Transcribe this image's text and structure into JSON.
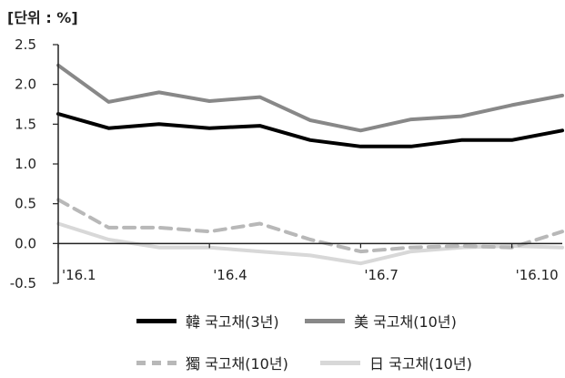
{
  "unit_label": "[단위 : %]",
  "chart_data": {
    "type": "line",
    "ylim": [
      -0.5,
      2.5
    ],
    "yticks": [
      "2.5",
      "2.0",
      "1.5",
      "1.0",
      "0.5",
      "0.0",
      "-0.5"
    ],
    "xtick_labels": [
      "'16.1",
      "'16.4",
      "'16.7",
      "'16.10"
    ],
    "grid": false,
    "legend_position": "bottom",
    "x": [
      "2016-01",
      "2016-02",
      "2016-03",
      "2016-04",
      "2016-05",
      "2016-06",
      "2016-07",
      "2016-08",
      "2016-09",
      "2016-10",
      "2016-11"
    ],
    "series": [
      {
        "name": "韓 국고채(3년)",
        "color": "#000000",
        "dash": "solid",
        "values": [
          1.63,
          1.45,
          1.5,
          1.45,
          1.48,
          1.3,
          1.22,
          1.22,
          1.3,
          1.3,
          1.42
        ]
      },
      {
        "name": "美 국고채(10년)",
        "color": "#888888",
        "dash": "solid",
        "values": [
          2.24,
          1.78,
          1.9,
          1.79,
          1.84,
          1.55,
          1.42,
          1.56,
          1.6,
          1.74,
          1.86
        ]
      },
      {
        "name": "獨 국고채(10년)",
        "color": "#b8b8b8",
        "dash": "dashed",
        "values": [
          0.55,
          0.2,
          0.2,
          0.15,
          0.25,
          0.05,
          -0.1,
          -0.05,
          -0.03,
          -0.05,
          0.15
        ]
      },
      {
        "name": "日 국고채(10년)",
        "color": "#d8d8d8",
        "dash": "solid",
        "values": [
          0.25,
          0.05,
          -0.05,
          -0.05,
          -0.1,
          -0.15,
          -0.25,
          -0.1,
          -0.05,
          -0.03,
          -0.05
        ]
      }
    ]
  }
}
